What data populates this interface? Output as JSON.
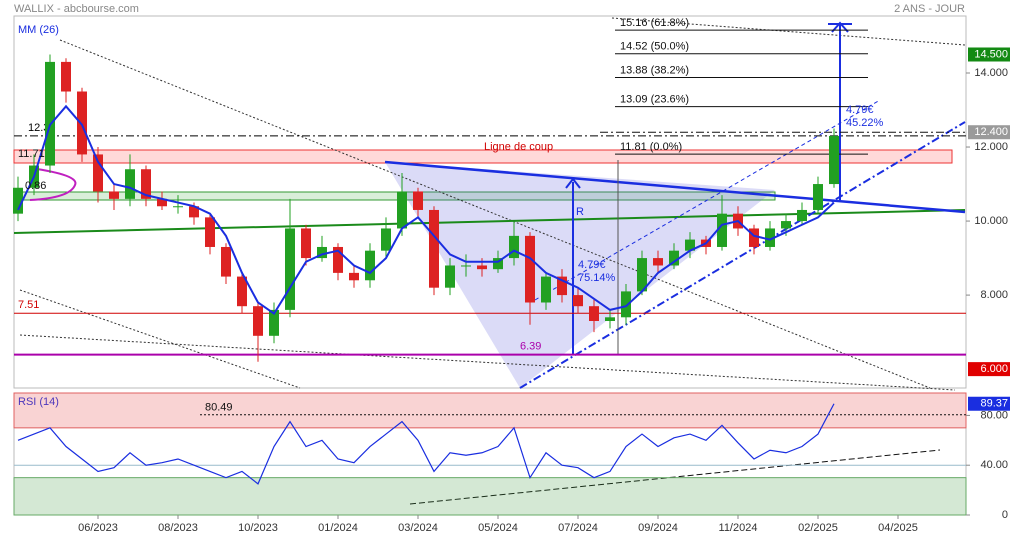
{
  "header": {
    "title": "WALLIX - abcbourse.com",
    "period": "2 ANS - JOUR"
  },
  "chart_data": [
    {
      "type": "candlestick",
      "categories": [
        null,
        null,
        null,
        null,
        null,
        "06/2023",
        null,
        null,
        null,
        null,
        "08/2023",
        null,
        null,
        null,
        null,
        "10/2023",
        null,
        null,
        null,
        null,
        "01/2024",
        null,
        null,
        null,
        null,
        "03/2024",
        null,
        null,
        null,
        null,
        "05/2024",
        null,
        null,
        null,
        null,
        "07/2024",
        null,
        null,
        null,
        null,
        "09/2024",
        null,
        null,
        null,
        null,
        "11/2024",
        null,
        null,
        null,
        null,
        "02/2025",
        null,
        null,
        null,
        null,
        "04/2025"
      ],
      "open": [
        10.2,
        10.9,
        11.5,
        14.3,
        13.5,
        11.8,
        10.8,
        10.6,
        11.4,
        10.6,
        10.4,
        10.4,
        10.1,
        9.3,
        8.5,
        7.7,
        6.9,
        7.6,
        9.8,
        9.0,
        9.3,
        8.6,
        8.4,
        9.2,
        9.8,
        10.8,
        10.3,
        8.2,
        8.8,
        8.8,
        8.7,
        9.0,
        9.6,
        7.8,
        8.5,
        8.0,
        7.7,
        7.3,
        7.4,
        8.1,
        9.0,
        8.8,
        9.2,
        9.5,
        9.3,
        10.2,
        9.8,
        9.3,
        9.8,
        10.0,
        10.3,
        11.0,
        null,
        null,
        null,
        null
      ],
      "high": [
        11.2,
        11.8,
        14.5,
        14.4,
        13.6,
        12.0,
        11.0,
        11.8,
        11.5,
        10.8,
        10.7,
        10.5,
        10.2,
        9.4,
        8.6,
        7.8,
        7.8,
        10.6,
        9.9,
        9.6,
        9.4,
        8.8,
        9.4,
        10.1,
        11.3,
        10.9,
        10.4,
        9.0,
        9.1,
        9.0,
        9.2,
        10.0,
        9.7,
        8.6,
        8.7,
        8.2,
        7.9,
        7.6,
        8.3,
        9.2,
        9.2,
        9.4,
        9.7,
        9.6,
        10.7,
        10.4,
        9.9,
        10.0,
        10.2,
        10.5,
        11.2,
        12.5,
        null,
        null,
        null,
        null
      ],
      "low": [
        10.0,
        10.7,
        11.3,
        13.2,
        11.6,
        10.5,
        10.3,
        10.4,
        10.4,
        10.3,
        10.2,
        9.9,
        9.1,
        8.3,
        7.5,
        6.2,
        6.7,
        7.4,
        8.8,
        8.9,
        8.4,
        8.2,
        8.2,
        9.0,
        9.6,
        10.1,
        8.0,
        8.0,
        8.5,
        8.5,
        8.6,
        8.8,
        7.2,
        7.6,
        7.8,
        7.5,
        7.0,
        7.1,
        7.2,
        8.0,
        8.6,
        8.7,
        9.0,
        9.1,
        9.2,
        9.6,
        9.1,
        9.2,
        9.6,
        9.9,
        10.2,
        10.9,
        null,
        null,
        null,
        null
      ],
      "close": [
        10.9,
        11.5,
        14.3,
        13.5,
        11.8,
        10.8,
        10.6,
        11.4,
        10.6,
        10.4,
        10.4,
        10.1,
        9.3,
        8.5,
        7.7,
        6.9,
        7.6,
        9.8,
        9.0,
        9.3,
        8.6,
        8.4,
        9.2,
        9.8,
        10.8,
        10.3,
        8.2,
        8.8,
        8.8,
        8.7,
        9.0,
        9.6,
        7.8,
        8.5,
        8.0,
        7.7,
        7.3,
        7.4,
        8.1,
        9.0,
        8.8,
        9.2,
        9.5,
        9.3,
        10.2,
        9.8,
        9.3,
        9.8,
        10.0,
        10.3,
        11.0,
        12.3,
        null,
        null,
        null,
        null
      ],
      "up_color": "#22a022",
      "down_color": "#dd2222",
      "series": [
        {
          "name": "MM (26)",
          "color": "#1a2ee0",
          "values": [
            10.3,
            11.2,
            12.6,
            13.1,
            12.6,
            11.6,
            11.0,
            10.9,
            10.7,
            10.6,
            10.5,
            10.4,
            10.2,
            9.6,
            8.6,
            7.8,
            7.5,
            8.2,
            8.9,
            9.1,
            9.2,
            8.8,
            8.6,
            9.0,
            9.8,
            10.1,
            9.6,
            9.1,
            8.9,
            8.9,
            8.9,
            9.2,
            9.0,
            8.6,
            8.4,
            8.2,
            7.9,
            7.6,
            7.7,
            8.1,
            8.6,
            8.9,
            9.2,
            9.4,
            9.9,
            10.0,
            9.6,
            9.5,
            9.7,
            9.9,
            10.1,
            10.5,
            null,
            null,
            null,
            null
          ]
        }
      ],
      "ylim": [
        5.49,
        15.54
      ],
      "yticks": [
        {
          "value": 8,
          "label": "8.000"
        },
        {
          "value": 10,
          "label": "10.000"
        },
        {
          "value": 12,
          "label": "12.000"
        },
        {
          "value": 14,
          "label": "14.000"
        }
      ],
      "price_markers": [
        {
          "value": 14.5,
          "label": "14.500",
          "color": "#138a13"
        },
        {
          "value": 12.4,
          "label": "12.400",
          "color": "#9a9a9a"
        },
        {
          "value": 6,
          "label": "6.000",
          "color": "#e00000"
        }
      ],
      "fib_levels": [
        {
          "value": 15.16,
          "label": "15.16 (61.8%)"
        },
        {
          "value": 14.52,
          "label": "14.52 (50.0%)"
        },
        {
          "value": 13.88,
          "label": "13.88 (38.2%)"
        },
        {
          "value": 13.09,
          "label": "13.09 (23.6%)"
        },
        {
          "value": 11.81,
          "label": "11.81 (0.0%)"
        }
      ],
      "levels": [
        {
          "value": 12.3,
          "label": "12.30",
          "color": "#000000"
        },
        {
          "value": 7.51,
          "label": "7.51",
          "color": "#d00000"
        },
        {
          "value": 6.39,
          "label": "6.39",
          "color": "#aa00aa"
        }
      ],
      "annotations": [
        "Ligne de coup",
        "R",
        "4.79€",
        "75.14%",
        "4.79€",
        "45.22%",
        "0.86",
        "11.71"
      ]
    },
    {
      "type": "line",
      "series": [
        {
          "name": "RSI (14)",
          "color": "#1a2ee0",
          "values": [
            60,
            65,
            70,
            55,
            45,
            35,
            38,
            50,
            40,
            42,
            45,
            40,
            35,
            30,
            35,
            25,
            55,
            75,
            55,
            60,
            45,
            42,
            55,
            65,
            75,
            60,
            35,
            50,
            48,
            50,
            55,
            70,
            30,
            50,
            40,
            38,
            30,
            35,
            55,
            65,
            55,
            62,
            65,
            60,
            72,
            58,
            45,
            52,
            50,
            55,
            65,
            89.37,
            null,
            null,
            null,
            null
          ]
        }
      ],
      "ylim": [
        0,
        98
      ],
      "yticks": [
        {
          "value": 80,
          "label": "80.00"
        },
        {
          "value": 40,
          "label": "40.00"
        },
        0
      ],
      "overbought": 70,
      "oversold": 30,
      "reference": {
        "value": 80.49,
        "label": "80.49"
      }
    }
  ]
}
